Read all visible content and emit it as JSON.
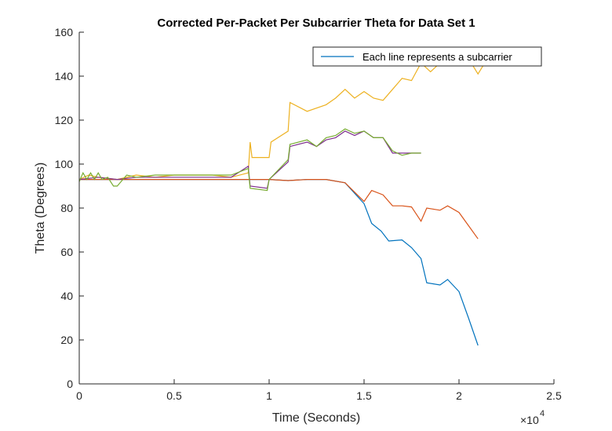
{
  "chart_data": {
    "type": "line",
    "title": "Corrected Per-Packet Per Subcarrier Theta for Data Set 1",
    "xlabel": "Time (Seconds)",
    "ylabel": "Theta (Degrees)",
    "xlim": [
      0,
      25000
    ],
    "ylim": [
      0,
      160
    ],
    "x_ticks": [
      0,
      5000,
      10000,
      15000,
      20000,
      25000
    ],
    "x_tick_labels": [
      "0",
      "0.5",
      "1",
      "1.5",
      "2",
      "2.5"
    ],
    "x_exponent_label": "×10",
    "x_exponent_power": "4",
    "y_ticks": [
      0,
      20,
      40,
      60,
      80,
      100,
      120,
      140,
      160
    ],
    "y_tick_labels": [
      "0",
      "20",
      "40",
      "60",
      "80",
      "100",
      "120",
      "140",
      "160"
    ],
    "grid": false,
    "legend": {
      "position": "top-right",
      "entries": [
        {
          "label": "Each line represents a subcarrier",
          "color": "#0072BD"
        }
      ]
    },
    "series": [
      {
        "color": "#0072BD",
        "x": [
          0,
          1000,
          2000,
          3000,
          4000,
          5000,
          6000,
          7000,
          8000,
          9000,
          10000,
          11000,
          12000,
          13000,
          14000,
          15000,
          15400,
          15900,
          16300,
          17000,
          17500,
          18000,
          18300,
          19000,
          19400,
          20000,
          20500,
          21000
        ],
        "values": [
          93,
          93,
          93,
          93,
          93,
          93,
          93,
          93,
          93,
          93,
          93,
          92.5,
          93,
          93,
          91.5,
          82,
          73,
          69.5,
          65,
          65.5,
          62,
          57,
          46,
          45,
          47.5,
          42,
          30,
          17.5
        ]
      },
      {
        "color": "#D95319",
        "x": [
          0,
          1000,
          2000,
          3000,
          4000,
          5000,
          6000,
          7000,
          8000,
          9000,
          10000,
          11000,
          12000,
          13000,
          14000,
          15000,
          15400,
          16000,
          16500,
          17000,
          17500,
          18000,
          18300,
          19000,
          19400,
          20000,
          20500,
          21000
        ],
        "values": [
          93,
          93,
          93,
          93,
          93,
          93,
          93,
          93,
          93,
          93,
          93,
          92.5,
          93,
          93,
          91.5,
          83,
          88,
          86,
          81,
          81,
          80.5,
          74,
          80,
          79,
          81,
          78,
          72,
          66
        ]
      },
      {
        "color": "#EDB120",
        "x": [
          0,
          500,
          1000,
          2000,
          3000,
          4000,
          5000,
          6000,
          7000,
          8000,
          8900,
          9000,
          9100,
          10000,
          10100,
          11000,
          11100,
          12000,
          13000,
          13500,
          14000,
          14500,
          15000,
          15500,
          16000,
          16500,
          17000,
          17500,
          18000,
          18500,
          19000,
          20000,
          20500,
          21000,
          21500,
          22000
        ],
        "values": [
          93,
          95,
          94,
          93,
          95,
          94,
          95,
          95,
          95,
          94,
          96,
          110,
          103,
          103,
          110,
          115,
          128,
          124,
          127,
          130,
          134,
          130,
          133,
          130,
          129,
          134,
          139,
          138,
          146,
          142,
          146,
          146,
          148,
          141,
          148,
          150
        ]
      },
      {
        "color": "#7E2F8E",
        "x": [
          0,
          1000,
          2000,
          3000,
          4000,
          5000,
          6000,
          7000,
          8000,
          8900,
          9000,
          9900,
          10000,
          11000,
          11100,
          12000,
          12500,
          13000,
          13500,
          14000,
          14500,
          15000,
          15500,
          16000,
          16500,
          17000,
          17500,
          18000
        ],
        "values": [
          93,
          94,
          93,
          94,
          94,
          94,
          94,
          94,
          94,
          99,
          90,
          89,
          93,
          101,
          108,
          110,
          108,
          111,
          112,
          115,
          113,
          115,
          112,
          112,
          105,
          105,
          105,
          105
        ]
      },
      {
        "color": "#77AC30",
        "x": [
          0,
          200,
          400,
          600,
          800,
          1000,
          1200,
          1500,
          1800,
          2000,
          2500,
          3000,
          4000,
          5000,
          6000,
          7000,
          8000,
          8900,
          9000,
          9900,
          10000,
          11000,
          11100,
          12000,
          12500,
          13000,
          13500,
          14000,
          14500,
          15000,
          15500,
          16000,
          16500,
          17000,
          17500,
          18000
        ],
        "values": [
          92,
          96,
          93,
          96,
          93,
          96,
          93,
          94,
          90,
          90,
          95,
          94,
          95,
          95,
          95,
          95,
          95,
          98,
          89,
          88,
          93,
          102,
          109,
          111,
          108,
          112,
          113,
          116,
          114,
          115,
          112,
          112,
          106,
          104,
          105,
          105
        ]
      }
    ]
  }
}
